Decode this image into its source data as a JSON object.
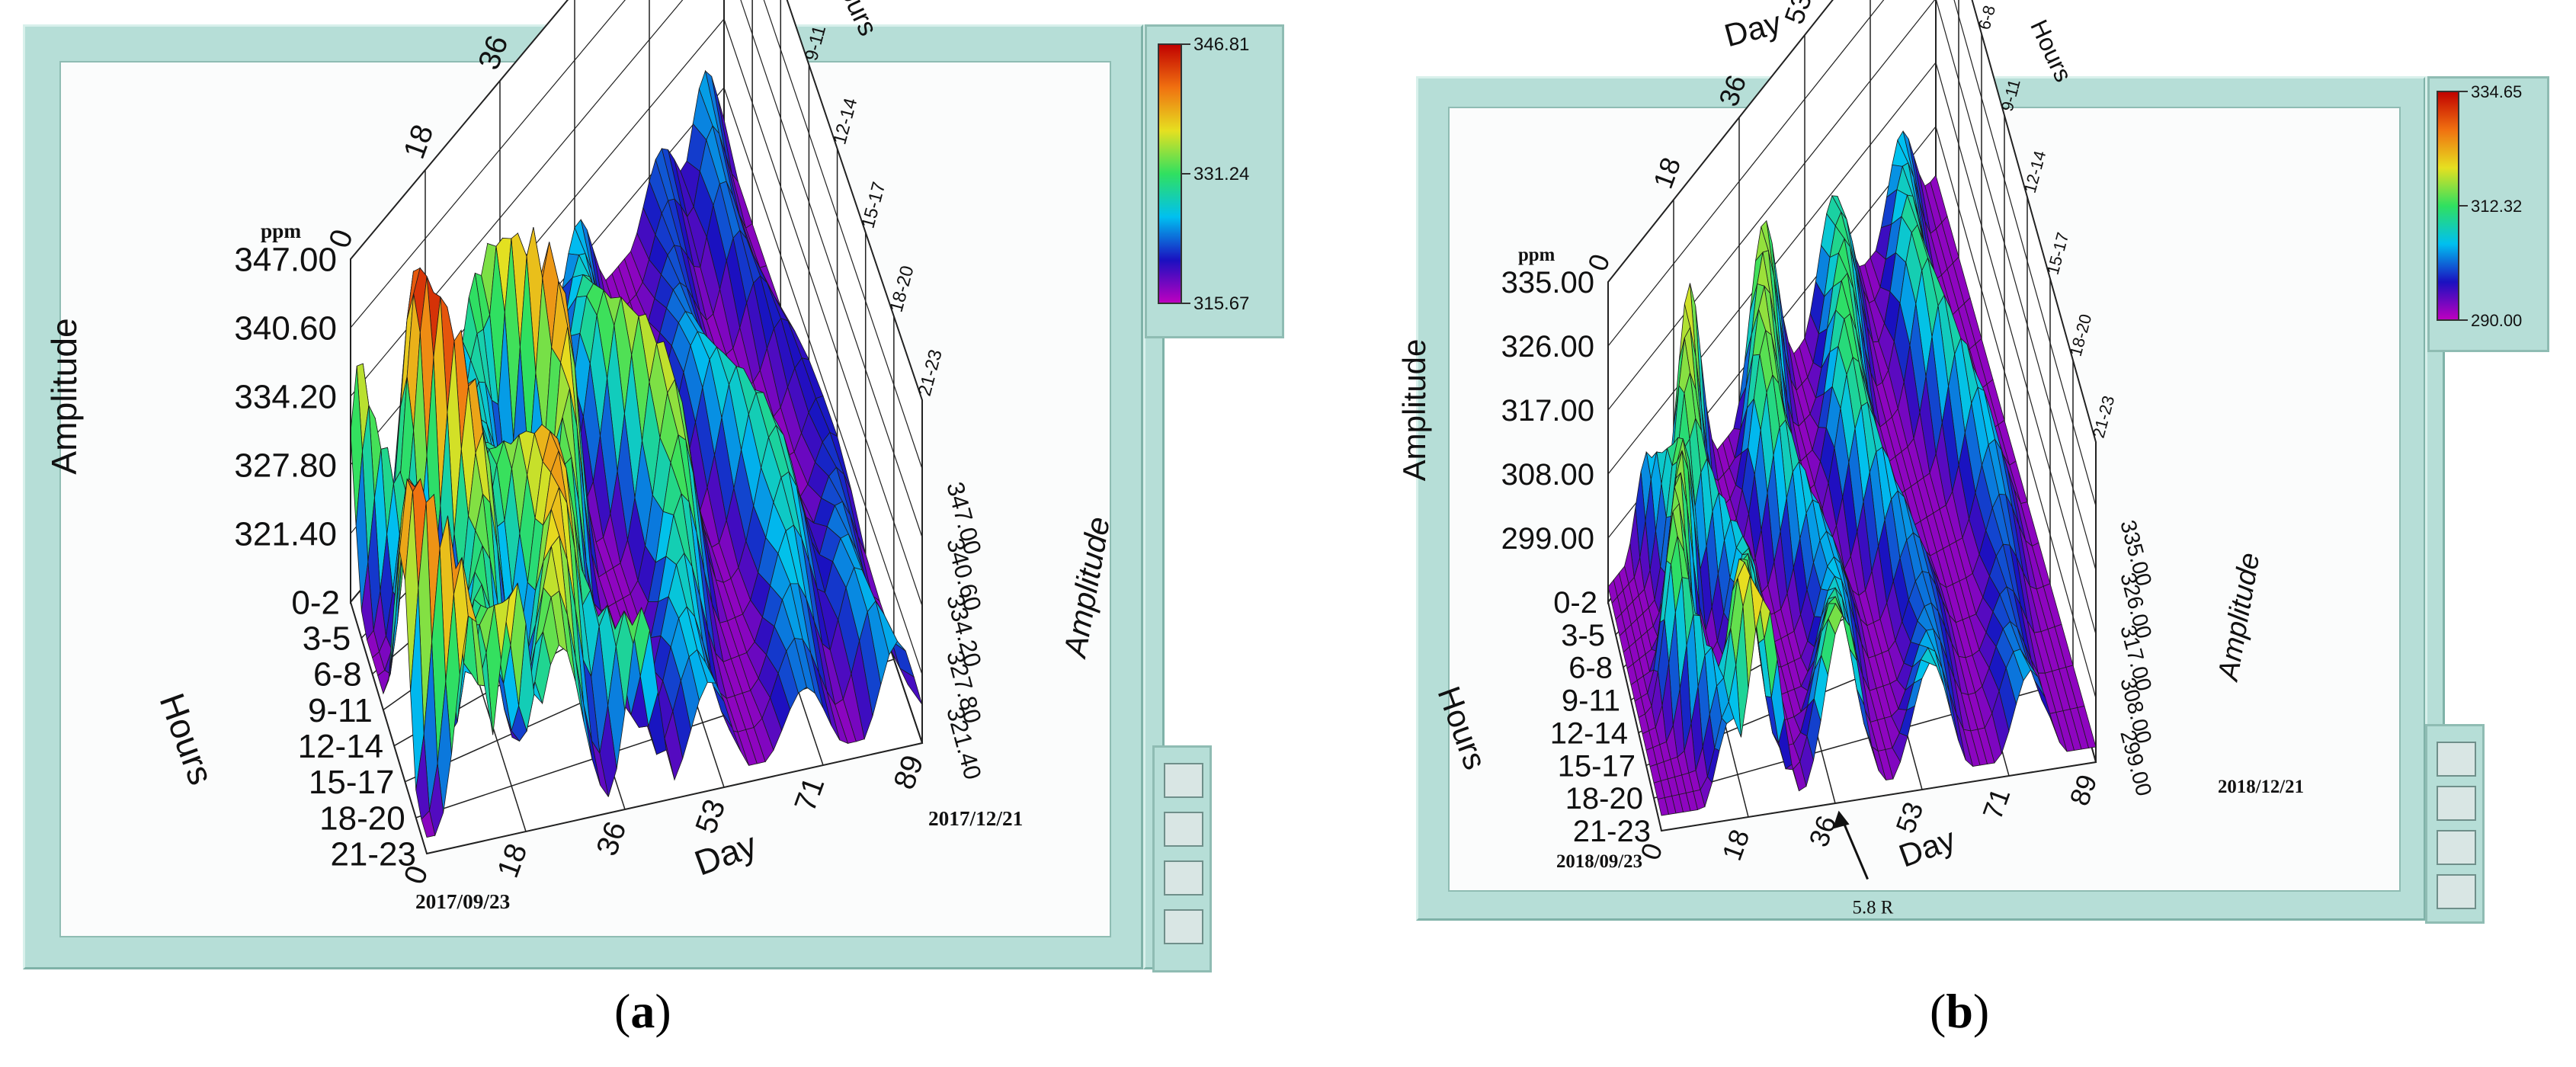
{
  "panels": [
    {
      "caption_open": "(",
      "caption_letter": "a",
      "caption_close": ")",
      "z_label": "Amplitude",
      "z_label_right": "Amplitude",
      "unit": "ppm",
      "x_label": "Day",
      "y_label": "Hours",
      "z_ticks": [
        "347.00",
        "340.60",
        "334.20",
        "327.80",
        "321.40"
      ],
      "z_ticks_right": [
        "347.00",
        "340.60",
        "334.20",
        "327.80",
        "321.40"
      ],
      "day_ticks": [
        "0",
        "18",
        "36",
        "53",
        "71",
        "89"
      ],
      "hour_ticks": [
        "0-2",
        "3-5",
        "6-8",
        "9-11",
        "12-14",
        "15-17",
        "18-20",
        "21-23"
      ],
      "start_date": "2017/09/23",
      "end_date": "2017/12/21",
      "colorbar": [
        "346.81",
        "331.24",
        "315.67"
      ],
      "annotation": ""
    },
    {
      "caption_open": "(",
      "caption_letter": "b",
      "caption_close": ")",
      "z_label": "Amplitude",
      "z_label_right": "Amplitude",
      "unit": "ppm",
      "x_label": "Day",
      "y_label": "Hours",
      "z_ticks": [
        "335.00",
        "326.00",
        "317.00",
        "308.00",
        "299.00"
      ],
      "z_ticks_right": [
        "335.00",
        "326.00",
        "317.00",
        "308.00",
        "299.00"
      ],
      "day_ticks": [
        "0",
        "18",
        "36",
        "53",
        "71",
        "89"
      ],
      "hour_ticks": [
        "0-2",
        "3-5",
        "6-8",
        "9-11",
        "12-14",
        "15-17",
        "18-20",
        "21-23"
      ],
      "start_date": "2018/09/23",
      "end_date": "2018/12/21",
      "colorbar": [
        "334.65",
        "312.32",
        "290.00"
      ],
      "annotation": "5.8 R"
    }
  ],
  "chart_data": [
    {
      "type": "surface",
      "x_label": "Day",
      "y_label": "Hours",
      "z_label": "Amplitude",
      "unit": "ppm",
      "x_range": [
        0,
        89
      ],
      "z_range": [
        321.4,
        347.0
      ],
      "x_ticks": [
        0,
        18,
        36,
        53,
        71,
        89
      ],
      "y_categories": [
        "0-2",
        "3-5",
        "6-8",
        "9-11",
        "12-14",
        "15-17",
        "18-20",
        "21-23"
      ],
      "colorbar_range": [
        315.67,
        346.81
      ],
      "start_date": "2017/09/23",
      "end_date": "2017/12/21",
      "ridges": [
        {
          "day": 5,
          "amplitude": 345.5
        },
        {
          "day": 16,
          "amplitude": 347.0
        },
        {
          "day": 27,
          "amplitude": 342.0
        },
        {
          "day": 36,
          "amplitude": 343.5
        },
        {
          "day": 53,
          "amplitude": 338.5
        },
        {
          "day": 71,
          "amplitude": 333.0
        },
        {
          "day": 85,
          "amplitude": 330.0
        }
      ]
    },
    {
      "type": "surface",
      "x_label": "Day",
      "y_label": "Hours",
      "z_label": "Amplitude",
      "unit": "ppm",
      "x_range": [
        0,
        89
      ],
      "z_range": [
        299.0,
        335.0
      ],
      "x_ticks": [
        0,
        18,
        36,
        53,
        71,
        89
      ],
      "y_categories": [
        "0-2",
        "3-5",
        "6-8",
        "9-11",
        "12-14",
        "15-17",
        "18-20",
        "21-23"
      ],
      "colorbar_range": [
        290.0,
        334.65
      ],
      "start_date": "2018/09/23",
      "end_date": "2018/12/21",
      "annotation": {
        "text": "5.8 R",
        "day": 36
      },
      "ridges": [
        {
          "day": 12,
          "amplitude": 322.0
        },
        {
          "day": 22,
          "amplitude": 325.0
        },
        {
          "day": 40,
          "amplitude": 322.0
        },
        {
          "day": 58,
          "amplitude": 318.0
        },
        {
          "day": 78,
          "amplitude": 316.0
        }
      ]
    }
  ],
  "colors": {
    "frame": "#b6ded7",
    "plot_bg": "#fbfcfc",
    "grid": "#222222",
    "surface_scale": [
      "#c000c0",
      "#1a10c0",
      "#00c0f0",
      "#30e060",
      "#e6e020",
      "#f07010",
      "#c00000"
    ]
  }
}
